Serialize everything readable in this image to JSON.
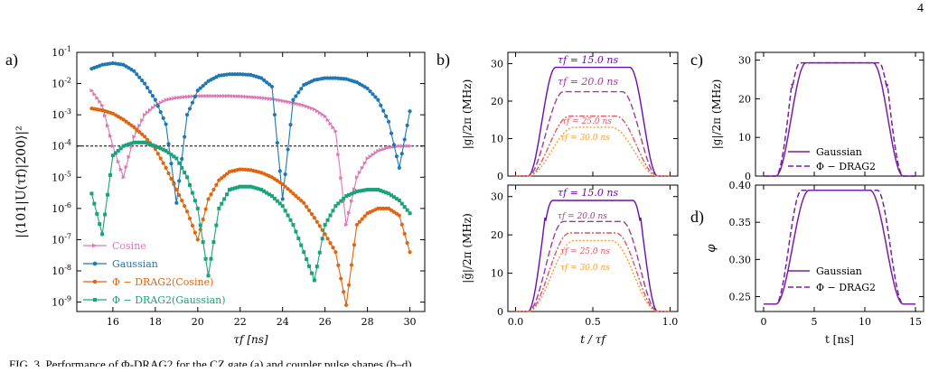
{
  "page_number": "4",
  "footer_fragment": "FIG. 3. Performance of Φ-DRAG2 for the CZ gate (a) and coupler pulse shapes (b–d).",
  "panels": {
    "a": {
      "label": "a)",
      "ylabel": "|⟨101|U(τf)|200⟩|²",
      "xlabel": "τ_f [ns]",
      "threshold_label": "",
      "legend": [
        "Cosine",
        "Gaussian",
        "Φ − DRAG2(Cosine)",
        "Φ − DRAG2(Gaussian)"
      ]
    },
    "b": {
      "label": "b)",
      "ylabel_top": "|g|/2π (MHz)",
      "ylabel_bottom": "|g̃|/2π (MHz)",
      "xlabel": "t / τf",
      "curve_labels": [
        "τf = 15.0 ns",
        "τf = 20.0 ns",
        "τf = 25.0 ns",
        "τf = 30.0 ns"
      ]
    },
    "c": {
      "label": "c)",
      "ylabel": "|g|/2π (MHz)",
      "legend": [
        "Gaussian",
        "Φ − DRAG2"
      ]
    },
    "d": {
      "label": "d)",
      "ylabel": "φ_ext",
      "xlabel": "t [ns]",
      "legend": [
        "Gaussian",
        "Φ − DRAG2"
      ]
    }
  },
  "colors": {
    "cosine": "#dc78b4",
    "gaussian": "#1f78b4",
    "drag_cosine": "#e0650e",
    "drag_gaussian": "#1aa37a",
    "purple": "#7a1fa2",
    "tau15": "#6a0dad",
    "tau20": "#a23a9a",
    "tau25": "#d9596a",
    "tau30": "#f0a030"
  },
  "chart_data": [
    {
      "type": "line",
      "title": "",
      "xlabel": "τ_f [ns]",
      "ylabel": "|⟨101|U(τf)|200⟩|²",
      "yscale": "log",
      "xlim": [
        14.3,
        30.7
      ],
      "ylim": [
        5e-10,
        0.1
      ],
      "xticks": [
        16,
        18,
        20,
        22,
        24,
        26,
        28,
        30
      ],
      "yticks": [
        "10^-9",
        "10^-8",
        "10^-7",
        "10^-6",
        "10^-5",
        "10^-4",
        "10^-3",
        "10^-2",
        "10^-1"
      ],
      "threshold": 0.0001,
      "legend_position": "lower-left",
      "x": [
        15,
        15.5,
        16,
        16.5,
        17,
        17.5,
        18,
        18.5,
        19,
        19.5,
        20,
        20.5,
        21,
        21.5,
        22,
        22.5,
        23,
        23.5,
        24,
        24.5,
        25,
        25.5,
        26,
        26.5,
        27,
        27.5,
        28,
        28.5,
        29,
        29.5,
        30
      ],
      "series": [
        {
          "name": "Cosine",
          "values": [
            0.006,
            0.002,
            0.0001,
            1e-05,
            0.0002,
            0.001,
            0.002,
            0.003,
            0.0035,
            0.0038,
            0.004,
            0.004,
            0.004,
            0.004,
            0.0039,
            0.0037,
            0.0035,
            0.0032,
            0.0028,
            0.0024,
            0.002,
            0.0015,
            0.0009,
            0.0003,
            3e-07,
            1e-05,
            4e-05,
            7e-05,
            9e-05,
            0.0001,
            0.0001
          ]
        },
        {
          "name": "Gaussian",
          "values": [
            0.03,
            0.04,
            0.045,
            0.04,
            0.025,
            0.01,
            0.003,
            0.0005,
            1.5e-06,
            0.001,
            0.006,
            0.012,
            0.018,
            0.02,
            0.02,
            0.019,
            0.015,
            0.008,
            2e-06,
            0.003,
            0.009,
            0.013,
            0.015,
            0.015,
            0.014,
            0.011,
            0.007,
            0.003,
            0.0006,
            2e-05,
            0.0013
          ]
        },
        {
          "name": "Φ − DRAG2(Cosine)",
          "values": [
            0.0016,
            0.0014,
            0.0011,
            0.0007,
            0.0004,
            0.0002,
            8e-05,
            2e-05,
            4e-06,
            8e-07,
            1e-07,
            2e-06,
            8e-06,
            1.5e-05,
            1.8e-05,
            1.7e-05,
            1.4e-05,
            1e-05,
            6e-06,
            3e-06,
            1.5e-06,
            5e-07,
            1.5e-07,
            4e-08,
            8e-10,
            3e-07,
            7e-07,
            1e-06,
            1e-06,
            6e-07,
            4e-08
          ]
        },
        {
          "name": "Φ − DRAG2(Gaussian)",
          "values": [
            3e-06,
            1.5e-07,
            5e-05,
            0.0001,
            0.00013,
            0.00013,
            0.0001,
            7e-05,
            4e-05,
            1e-05,
            1e-06,
            7e-09,
            1e-06,
            4e-06,
            5e-06,
            5e-06,
            4e-06,
            2.5e-06,
            1.2e-06,
            3e-07,
            4e-08,
            5e-09,
            3e-07,
            1.2e-06,
            2.5e-06,
            3.5e-06,
            4e-06,
            4e-06,
            3e-06,
            1.8e-06,
            7e-07
          ]
        }
      ]
    },
    {
      "type": "line",
      "title": "",
      "xlabel": "",
      "ylabel": "|g|/2π (MHz)",
      "xlim": [
        -0.05,
        1.05
      ],
      "ylim": [
        0,
        33
      ],
      "xticks": [
        0.0,
        0.5,
        1.0
      ],
      "yticks": [
        0,
        10,
        20,
        30
      ],
      "series": [
        {
          "name": "τf = 15.0 ns",
          "peak": 29
        },
        {
          "name": "τf = 20.0 ns",
          "peak": 22.5
        },
        {
          "name": "τf = 25.0 ns",
          "peak": 16
        },
        {
          "name": "τf = 30.0 ns",
          "peak": 13
        }
      ]
    },
    {
      "type": "line",
      "title": "",
      "xlabel": "t / τf",
      "ylabel": "|g̃|/2π (MHz)",
      "xlim": [
        -0.05,
        1.05
      ],
      "ylim": [
        0,
        33
      ],
      "xticks": [
        0.0,
        0.5,
        1.0
      ],
      "yticks": [
        0,
        10,
        20,
        30
      ],
      "series": [
        {
          "name": "τf = 15.0 ns",
          "peak": 29,
          "shoulder": 15
        },
        {
          "name": "τf = 20.0 ns",
          "peak": 23.5
        },
        {
          "name": "τf = 25.0 ns",
          "peak": 20.5
        },
        {
          "name": "τf = 30.0 ns",
          "peak": 18.5
        }
      ]
    },
    {
      "type": "line",
      "title": "",
      "xlabel": "",
      "ylabel": "|g|/2π (MHz)",
      "xlim": [
        -0.8,
        15.8
      ],
      "ylim": [
        0,
        32
      ],
      "xticks": [
        0,
        5,
        10,
        15
      ],
      "yticks": [
        0,
        10,
        20,
        30
      ],
      "series": [
        {
          "name": "Gaussian",
          "peak": 29.3
        },
        {
          "name": "Φ − DRAG2",
          "peak": 29.3,
          "shoulder": 15
        }
      ]
    },
    {
      "type": "line",
      "title": "",
      "xlabel": "t [ns]",
      "ylabel": "φ_ext",
      "xlim": [
        -0.8,
        15.8
      ],
      "ylim": [
        0.23,
        0.4
      ],
      "xticks": [
        0,
        5,
        10,
        15
      ],
      "yticks": [
        0.25,
        0.3,
        0.35,
        0.4
      ],
      "series": [
        {
          "name": "Gaussian",
          "start": 0.24,
          "peak": 0.393
        },
        {
          "name": "Φ − DRAG2",
          "start": 0.24,
          "peak": 0.393
        }
      ]
    }
  ]
}
